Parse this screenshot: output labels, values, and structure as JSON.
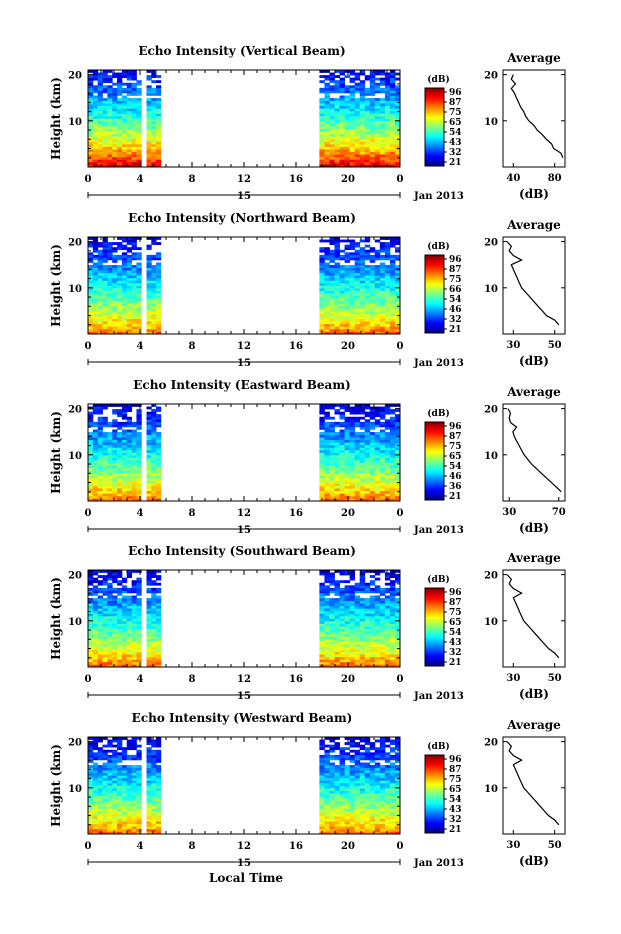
{
  "chart_data": [
    {
      "type": "heatmap",
      "title": "Echo Intensity (Vertical Beam)",
      "ylabel": "Height (km)",
      "x_ticks": [
        "0",
        "4",
        "8",
        "12",
        "16",
        "20",
        "0"
      ],
      "y_ticks": [
        "20",
        "10"
      ],
      "x_date_label": "15",
      "date_suffix": "Jan 2013",
      "data_segments_hours": [
        [
          0,
          4.1
        ],
        [
          4.5,
          5.6
        ],
        [
          17.8,
          24
        ]
      ],
      "colorbar": {
        "unit": "(dB)",
        "ticks": [
          "96",
          "87",
          "75",
          "65",
          "54",
          "43",
          "32",
          "21"
        ]
      },
      "average_profile": {
        "title": "Average",
        "xlabel": "(dB)",
        "x_ticks": [
          "40",
          "80"
        ],
        "xlim": [
          30,
          90
        ],
        "y_ticks": [
          "20",
          "10"
        ],
        "height_km": [
          2,
          3,
          4,
          5,
          6,
          7,
          8,
          9,
          10,
          11,
          12,
          13,
          14,
          15,
          16,
          17,
          18,
          19,
          20
        ],
        "values_db": [
          88,
          86,
          79,
          77,
          72,
          68,
          63,
          60,
          55,
          52,
          50,
          47,
          45,
          43,
          41,
          38,
          42,
          38,
          40
        ]
      }
    },
    {
      "type": "heatmap",
      "title": "Echo Intensity (Northward Beam)",
      "ylabel": "Height (km)",
      "x_ticks": [
        "0",
        "4",
        "8",
        "12",
        "16",
        "20",
        "0"
      ],
      "y_ticks": [
        "20",
        "10"
      ],
      "x_date_label": "15",
      "date_suffix": "Jan 2013",
      "data_segments_hours": [
        [
          0,
          4.1
        ],
        [
          4.5,
          5.6
        ],
        [
          17.8,
          24
        ]
      ],
      "colorbar": {
        "unit": "(dB)",
        "ticks": [
          "96",
          "87",
          "75",
          "66",
          "54",
          "46",
          "32",
          "21"
        ]
      },
      "average_profile": {
        "title": "Average",
        "xlabel": "(dB)",
        "x_ticks": [
          "30",
          "50"
        ],
        "xlim": [
          25,
          55
        ],
        "y_ticks": [
          "20",
          "10"
        ],
        "height_km": [
          2,
          3,
          4,
          5,
          6,
          7,
          8,
          9,
          10,
          11,
          12,
          13,
          14,
          15,
          16,
          17,
          18,
          19,
          20
        ],
        "values_db": [
          52,
          50,
          46,
          44,
          42,
          40,
          38,
          36,
          34,
          33,
          32,
          31,
          30,
          29,
          34,
          30,
          28,
          29,
          27
        ]
      }
    },
    {
      "type": "heatmap",
      "title": "Echo Intensity (Eastward Beam)",
      "ylabel": "Height (km)",
      "x_ticks": [
        "0",
        "4",
        "8",
        "12",
        "16",
        "20",
        "0"
      ],
      "y_ticks": [
        "20",
        "10"
      ],
      "x_date_label": "15",
      "date_suffix": "Jan 2013",
      "data_segments_hours": [
        [
          0,
          4.1
        ],
        [
          4.5,
          5.6
        ],
        [
          17.8,
          24
        ]
      ],
      "colorbar": {
        "unit": "(dB)",
        "ticks": [
          "96",
          "87",
          "75",
          "65",
          "54",
          "46",
          "36",
          "21"
        ]
      },
      "average_profile": {
        "title": "Average",
        "xlabel": "(dB)",
        "x_ticks": [
          "30",
          "70"
        ],
        "xlim": [
          25,
          75
        ],
        "y_ticks": [
          "20",
          "10"
        ],
        "height_km": [
          2,
          3,
          4,
          5,
          6,
          7,
          8,
          9,
          10,
          11,
          12,
          13,
          14,
          15,
          16,
          17,
          18,
          19,
          20
        ],
        "values_db": [
          72,
          68,
          64,
          60,
          56,
          52,
          48,
          45,
          42,
          40,
          38,
          36,
          34,
          33,
          36,
          31,
          30,
          31,
          29
        ]
      }
    },
    {
      "type": "heatmap",
      "title": "Echo Intensity (Southward Beam)",
      "ylabel": "Height (km)",
      "x_ticks": [
        "0",
        "4",
        "8",
        "12",
        "16",
        "20",
        "0"
      ],
      "y_ticks": [
        "20",
        "10"
      ],
      "x_date_label": "15",
      "date_suffix": "Jan 2013",
      "data_segments_hours": [
        [
          0,
          4.1
        ],
        [
          4.5,
          5.6
        ],
        [
          17.8,
          24
        ]
      ],
      "colorbar": {
        "unit": "(dB)",
        "ticks": [
          "96",
          "87",
          "75",
          "65",
          "54",
          "43",
          "32",
          "21"
        ]
      },
      "average_profile": {
        "title": "Average",
        "xlabel": "(dB)",
        "x_ticks": [
          "30",
          "50"
        ],
        "xlim": [
          25,
          55
        ],
        "y_ticks": [
          "20",
          "10"
        ],
        "height_km": [
          2,
          3,
          4,
          5,
          6,
          7,
          8,
          9,
          10,
          11,
          12,
          13,
          14,
          15,
          16,
          17,
          18,
          19,
          20
        ],
        "values_db": [
          52,
          50,
          47,
          45,
          43,
          41,
          39,
          37,
          35,
          34,
          33,
          32,
          31,
          30,
          34,
          30,
          28,
          29,
          27
        ]
      }
    },
    {
      "type": "heatmap",
      "title": "Echo Intensity (Westward Beam)",
      "ylabel": "Height (km)",
      "xlabel": "Local Time",
      "x_ticks": [
        "0",
        "4",
        "8",
        "12",
        "16",
        "20",
        "0"
      ],
      "y_ticks": [
        "20",
        "10"
      ],
      "x_date_label": "15",
      "date_suffix": "Jan 2013",
      "data_segments_hours": [
        [
          0,
          4.1
        ],
        [
          4.5,
          5.6
        ],
        [
          17.8,
          24
        ]
      ],
      "colorbar": {
        "unit": "(dB)",
        "ticks": [
          "96",
          "87",
          "75",
          "65",
          "54",
          "43",
          "32",
          "21"
        ]
      },
      "average_profile": {
        "title": "Average",
        "xlabel": "(dB)",
        "x_ticks": [
          "30",
          "50"
        ],
        "xlim": [
          25,
          55
        ],
        "y_ticks": [
          "20",
          "10"
        ],
        "height_km": [
          2,
          3,
          4,
          5,
          6,
          7,
          8,
          9,
          10,
          11,
          12,
          13,
          14,
          15,
          16,
          17,
          18,
          19,
          20
        ],
        "values_db": [
          52,
          50,
          47,
          45,
          43,
          41,
          39,
          37,
          35,
          34,
          33,
          32,
          31,
          30,
          34,
          30,
          28,
          29,
          27
        ]
      }
    }
  ]
}
